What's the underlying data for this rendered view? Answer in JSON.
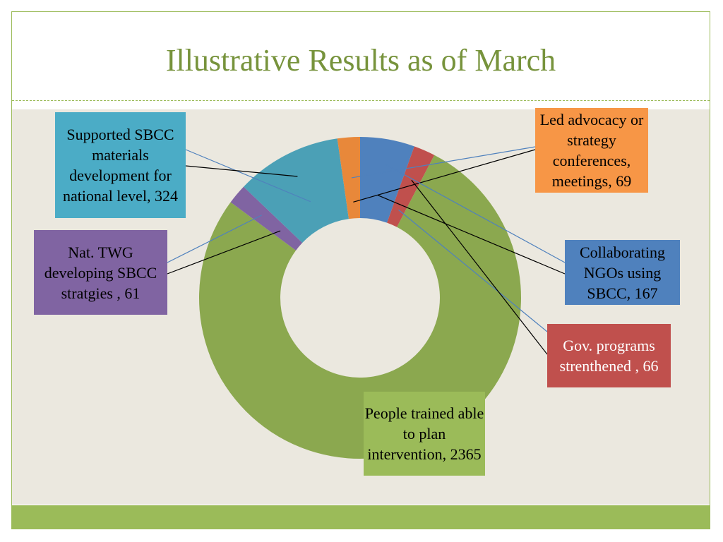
{
  "slide": {
    "title": "Illustrative Results as of March"
  },
  "chart_data": {
    "type": "pie",
    "donut": true,
    "start_angle_deg": 0,
    "direction": "clockwise",
    "slices": [
      {
        "name": "Collaborating NGOs using SBCC",
        "value": 167,
        "color": "#4f81bd",
        "label": "Collaborating NGOs using SBCC, 167"
      },
      {
        "name": "Gov. programs strenthened",
        "value": 66,
        "color": "#c0504d",
        "label": "Gov. programs strenthened , 66"
      },
      {
        "name": "People trained able to plan intervention",
        "value": 2365,
        "color": "#8ba84f",
        "label": "People trained able to plan intervention, 2365"
      },
      {
        "name": "Nat. TWG developing SBCC stratgies",
        "value": 61,
        "color": "#8064a2",
        "label": "Nat. TWG developing SBCC stratgies , 61"
      },
      {
        "name": "Supported SBCC materials development for national level",
        "value": 324,
        "color": "#4ba0b6",
        "label": "Supported SBCC materials development for national level, 324"
      },
      {
        "name": "Led advocacy or strategy conferences, meetings",
        "value": 69,
        "color": "#e8883a",
        "label": "Led advocacy or strategy conferences, meetings, 69"
      }
    ]
  },
  "labels": {
    "supported": "Supported SBCC materials development for national level, 324",
    "twg": "Nat. TWG developing SBCC stratgies , 61",
    "advocacy": "Led advocacy or strategy conferences, meetings, 69",
    "ngos": "Collaborating NGOs using SBCC, 167",
    "gov": "Gov. programs strenthened , 66",
    "people": "People trained able to plan intervention, 2365"
  },
  "colors": {
    "accent": "#9bbb59",
    "title": "#77933c",
    "background": "#ebe8df",
    "supported_box": "#4bacc6",
    "twg_box": "#8064a2",
    "advocacy_box": "#f79646",
    "ngos_box": "#4f81bd",
    "gov_box": "#c0504d",
    "people_box": "#9bbb59"
  }
}
